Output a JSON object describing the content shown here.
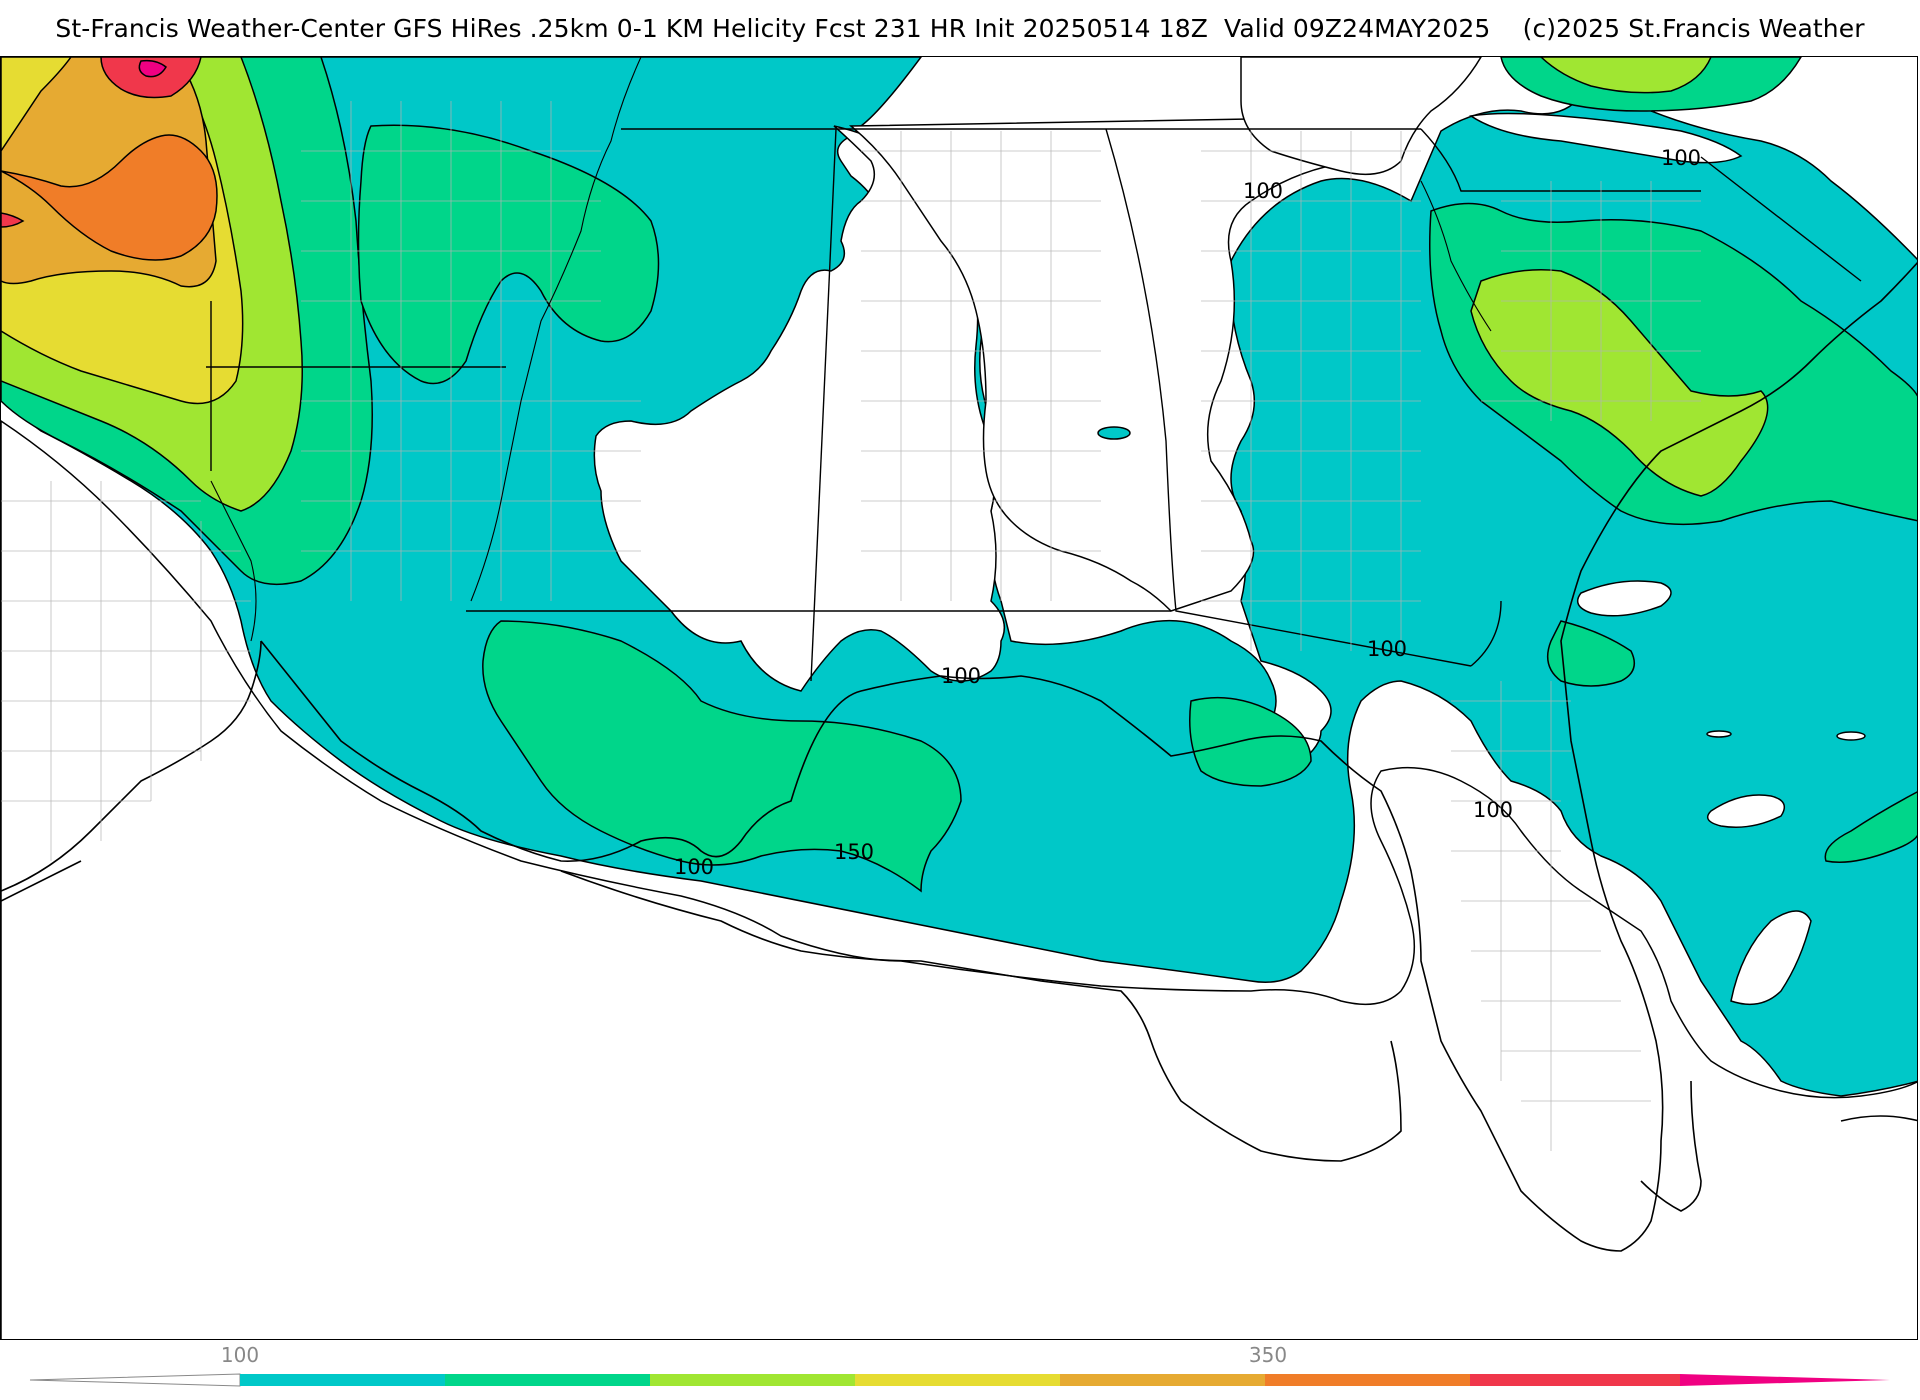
{
  "title": "St-Francis Weather-Center GFS HiRes .25km 0-1 KM Helicity Fcst 231 HR Init 20250514 18Z  Valid 09Z24MAY2025    (c)2025 St.Francis Weather",
  "field": "0-1 KM Helicity",
  "colorbar": {
    "tick_labels": [
      "100",
      "350"
    ],
    "colors": [
      "#00c8c8",
      "#00d68a",
      "#a0e632",
      "#e6dc32",
      "#e6aa32",
      "#f07d28",
      "#f0374b",
      "#f00082"
    ]
  },
  "contour_labels": [
    {
      "text": "100",
      "id": "label-100-georgia-north"
    },
    {
      "text": "100",
      "id": "label-100-carolina"
    },
    {
      "text": "100",
      "id": "label-100-gulf-coast"
    },
    {
      "text": "100",
      "id": "label-100-georgia-south"
    },
    {
      "text": "100",
      "id": "label-100-florida"
    },
    {
      "text": "100",
      "id": "label-100-louisiana"
    },
    {
      "text": "150",
      "id": "label-150-louisiana"
    }
  ]
}
